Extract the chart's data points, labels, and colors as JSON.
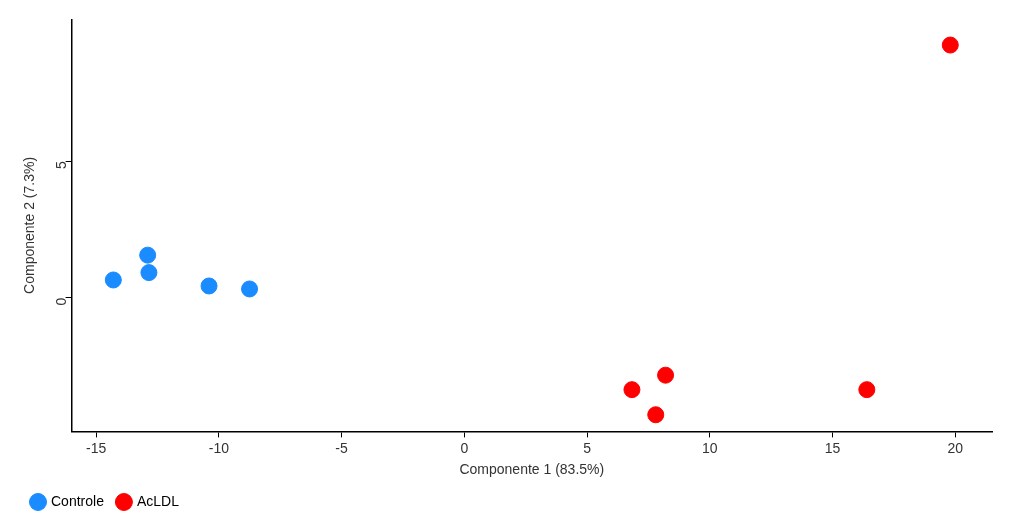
{
  "chart_data": {
    "type": "scatter",
    "xlabel": "Componente 1 (83.5%)",
    "ylabel": "Componente 2 (7.3%)",
    "xlim": [
      -16,
      21.5
    ],
    "xticks": [
      -15,
      -10,
      -5,
      0,
      5,
      10,
      15,
      20
    ],
    "ylim": [
      -4.9,
      10.2
    ],
    "yticks": [
      0,
      5
    ],
    "grid": false,
    "legend": "bottom left",
    "marker": "circle",
    "series": [
      {
        "name": "Controle",
        "color": "#1a8cff",
        "x": [
          -14.3,
          -12.9,
          -12.85,
          -10.4,
          -8.75
        ],
        "values": [
          0.65,
          1.56,
          0.92,
          0.43,
          0.32
        ]
      },
      {
        "name": "AcLDL",
        "color": "#ff0000",
        "x": [
          19.8,
          6.83,
          8.2,
          7.8,
          16.4
        ],
        "values": [
          9.26,
          -3.37,
          -2.84,
          -4.29,
          -3.37
        ]
      }
    ]
  }
}
